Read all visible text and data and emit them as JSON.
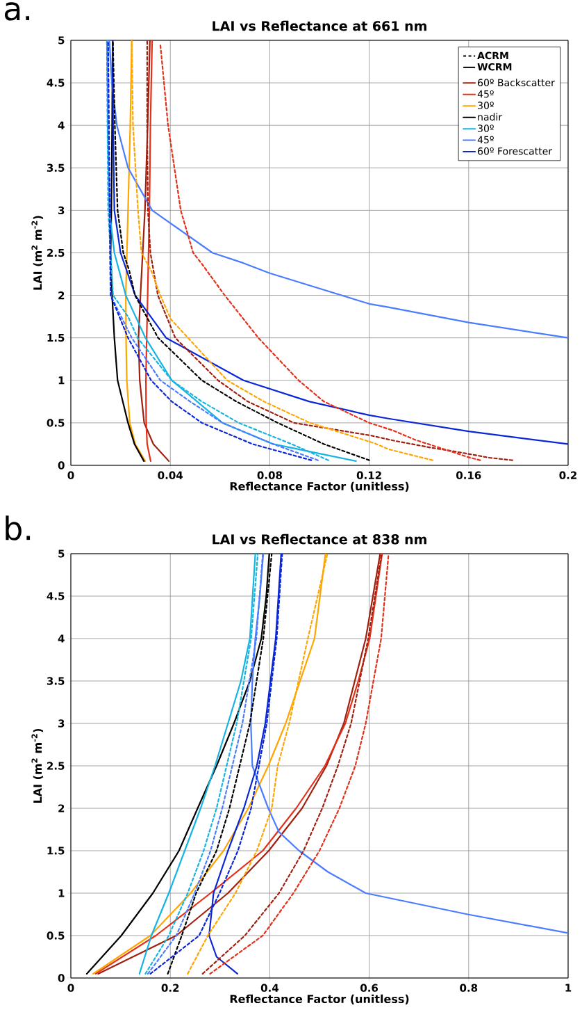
{
  "chart_data": [
    {
      "type": "line",
      "title": "LAI vs Reflectance at 661 nm",
      "xlabel": "Reflectance Factor (unitless)",
      "ylabel": "LAI (m$^{2}$ m$^{-2}$)",
      "annotations": [
        "a.",
        "ACRM",
        "WCRM"
      ],
      "xlim": [
        0,
        0.2
      ],
      "ylim": [
        0,
        5
      ],
      "xticks": [
        0,
        0.04,
        0.08,
        0.12,
        0.16,
        0.2
      ],
      "yticks": [
        0,
        0.5,
        1,
        1.5,
        2,
        2.5,
        3,
        3.5,
        4,
        4.5,
        5
      ],
      "grid": true,
      "legend": "top right",
      "series": [
        {
          "name": "60º Backscatter",
          "color": "#a0200f",
          "line_style": "solid",
          "x": [
            0.0394,
            0.0332,
            0.0295,
            0.0277,
            0.0272,
            0.028,
            0.0298,
            0.0309,
            0.0318
          ],
          "values": [
            0.05,
            0.25,
            0.5,
            1,
            1.5,
            2,
            3,
            4,
            5
          ]
        },
        {
          "name": "45º",
          "color": "#e3301a",
          "line_style": "solid",
          "x": [
            0.0321,
            0.0307,
            0.0303,
            0.0302,
            0.0305,
            0.0309,
            0.0316,
            0.032,
            0.0327
          ],
          "values": [
            0.05,
            0.25,
            0.5,
            1,
            1.5,
            2,
            3,
            4,
            5
          ]
        },
        {
          "name": "30º",
          "color": "#ffa500",
          "line_style": "solid",
          "x": [
            0.0299,
            0.0259,
            0.0237,
            0.0225,
            0.0222,
            0.0221,
            0.023,
            0.0239,
            0.0245
          ],
          "values": [
            0.05,
            0.25,
            0.5,
            1,
            1.5,
            2,
            3,
            4,
            5
          ]
        },
        {
          "name": "nadir",
          "color": "#000000",
          "line_style": "solid",
          "x": [
            0.0294,
            0.0256,
            0.023,
            0.0188,
            0.0175,
            0.0166,
            0.016,
            0.0163,
            0.0166,
            0.0168
          ],
          "values": [
            0.05,
            0.25,
            0.5,
            1,
            1.5,
            2,
            2.5,
            3,
            4,
            5
          ]
        },
        {
          "name": "30º",
          "color": "#16b4e2",
          "line_style": "solid",
          "x": [
            0.1147,
            0.0814,
            0.061,
            0.0406,
            0.03,
            0.0221,
            0.0175,
            0.0155,
            0.0148,
            0.0148
          ],
          "values": [
            0.05,
            0.25,
            0.5,
            1,
            1.5,
            2,
            2.5,
            3,
            4,
            5
          ]
        },
        {
          "name": "45º",
          "color": "#4a7cff",
          "line_style": "solid",
          "x": [
            0.2,
            0.16,
            0.1277,
            0.12,
            0.08,
            0.0694,
            0.057,
            0.0327,
            0.023,
            0.0185,
            0.0165,
            0.0155
          ],
          "values": [
            1.5,
            1.68,
            1.86,
            1.9,
            2.26,
            2.38,
            2.5,
            3,
            3.5,
            4,
            4.5,
            5
          ]
        },
        {
          "name": "60º Forescatter",
          "color": "#0b26d6",
          "line_style": "solid",
          "x": [
            0.2,
            0.16,
            0.1277,
            0.12,
            0.096,
            0.0694,
            0.0383,
            0.0259,
            0.02,
            0.0175,
            0.017,
            0.0168
          ],
          "values": [
            0.25,
            0.4,
            0.55,
            0.59,
            0.75,
            1,
            1.5,
            2,
            2.5,
            3,
            4,
            5
          ]
        },
        {
          "color": "#a0200f",
          "line_style": "dashed",
          "x": [
            0.1776,
            0.1683,
            0.1608,
            0.153,
            0.1445,
            0.13,
            0.1208,
            0.0897,
            0.0712,
            0.0592,
            0.042,
            0.035,
            0.032,
            0.031,
            0.0307,
            0.0307
          ],
          "values": [
            0.06,
            0.09,
            0.13,
            0.17,
            0.21,
            0.29,
            0.35,
            0.5,
            0.75,
            1,
            1.5,
            2,
            2.5,
            3,
            4,
            5
          ]
        },
        {
          "color": "#e3301a",
          "line_style": "dashed",
          "x": [
            0.1646,
            0.1594,
            0.148,
            0.1385,
            0.1296,
            0.12,
            0.1018,
            0.0916,
            0.0754,
            0.0619,
            0.0527,
            0.0492,
            0.0442,
            0.0391,
            0.036
          ],
          "values": [
            0.06,
            0.1,
            0.21,
            0.3,
            0.41,
            0.5,
            0.75,
            1,
            1.5,
            2,
            2.37,
            2.5,
            3,
            4,
            4.95
          ]
        },
        {
          "color": "#ffa500",
          "line_style": "dashed",
          "x": [
            0.1455,
            0.1277,
            0.1221,
            0.0962,
            0.0777,
            0.0629,
            0.0471,
            0.0402,
            0.036,
            0.0323,
            0.0284,
            0.027,
            0.025,
            0.0245
          ],
          "values": [
            0.06,
            0.19,
            0.26,
            0.5,
            0.75,
            1,
            1.5,
            1.72,
            2,
            2.29,
            2.5,
            3,
            4,
            5
          ]
        },
        {
          "color": "#000000",
          "line_style": "dashed",
          "x": [
            0.12,
            0.1018,
            0.0832,
            0.0666,
            0.0527,
            0.0351,
            0.0258,
            0.0235,
            0.0211,
            0.0188,
            0.0177,
            0.0169
          ],
          "values": [
            0.06,
            0.25,
            0.5,
            0.75,
            1,
            1.5,
            2,
            2.29,
            2.5,
            3,
            4,
            5
          ]
        },
        {
          "color": "#16b4e2",
          "line_style": "dashed",
          "x": [
            0.1036,
            0.0888,
            0.0675,
            0.0527,
            0.0406,
            0.0268,
            0.023,
            0.017,
            0.015,
            0.0145
          ],
          "values": [
            0.06,
            0.25,
            0.5,
            0.75,
            1,
            1.5,
            1.75,
            2,
            3,
            5
          ]
        },
        {
          "color": "#4a7cff",
          "line_style": "dashed",
          "x": [
            0.0994,
            0.0814,
            0.061,
            0.048,
            0.036,
            0.0245,
            0.016,
            0.0145
          ],
          "values": [
            0.06,
            0.25,
            0.5,
            0.75,
            1,
            1.5,
            2,
            5
          ]
        },
        {
          "color": "#0b26d6",
          "line_style": "dashed",
          "x": [
            0.0967,
            0.0731,
            0.0527,
            0.0406,
            0.0323,
            0.023,
            0.016,
            0.015
          ],
          "values": [
            0.06,
            0.25,
            0.5,
            0.75,
            1,
            1.5,
            2,
            5
          ]
        }
      ]
    },
    {
      "type": "line",
      "title": "LAI vs Reflectance at 838 nm",
      "xlabel": "Reflectance Factor (unitless)",
      "ylabel": "LAI (m$^{2}$ m$^{-2}$)",
      "annotations": [
        "b."
      ],
      "xlim": [
        0,
        1
      ],
      "ylim": [
        0,
        5
      ],
      "xticks": [
        0,
        0.2,
        0.4,
        0.6,
        0.8,
        1
      ],
      "yticks": [
        0,
        0.5,
        1,
        1.5,
        2,
        2.5,
        3,
        3.5,
        4,
        4.5,
        5
      ],
      "grid": true,
      "series": [
        {
          "color": "#a0200f",
          "line_style": "solid",
          "x": [
            0.055,
            0.212,
            0.316,
            0.398,
            0.465,
            0.514,
            0.549,
            0.593,
            0.622
          ],
          "values": [
            0.05,
            0.5,
            1,
            1.5,
            2,
            2.5,
            3,
            4,
            5
          ]
        },
        {
          "color": "#e3301a",
          "line_style": "solid",
          "x": [
            0.05,
            0.171,
            0.281,
            0.386,
            0.453,
            0.511,
            0.552,
            0.578,
            0.601,
            0.626
          ],
          "values": [
            0.05,
            0.5,
            1,
            1.5,
            2,
            2.5,
            3,
            3.5,
            4,
            5
          ]
        },
        {
          "color": "#ffa500",
          "line_style": "solid",
          "x": [
            0.045,
            0.16,
            0.241,
            0.307,
            0.357,
            0.397,
            0.432,
            0.49,
            0.512
          ],
          "values": [
            0.05,
            0.5,
            1,
            1.5,
            2,
            2.5,
            3,
            4,
            5
          ]
        },
        {
          "color": "#000000",
          "line_style": "solid",
          "x": [
            0.032,
            0.1015,
            0.165,
            0.2175,
            0.255,
            0.293,
            0.328,
            0.36,
            0.383,
            0.393,
            0.399
          ],
          "values": [
            0.05,
            0.5,
            1,
            1.5,
            2,
            2.5,
            3,
            3.5,
            4,
            4.5,
            5
          ]
        },
        {
          "color": "#16b4e2",
          "line_style": "solid",
          "x": [
            0.138,
            0.162,
            0.197,
            0.229,
            0.261,
            0.29,
            0.316,
            0.342,
            0.36,
            0.371
          ],
          "values": [
            0.05,
            0.5,
            1,
            1.5,
            2,
            2.5,
            3,
            3.5,
            4,
            5
          ]
        },
        {
          "color": "#4a7cff",
          "line_style": "solid",
          "x": [
            1,
            0.798,
            0.593,
            0.517,
            0.459,
            0.4186,
            0.397,
            0.365,
            0.362,
            0.365,
            0.371,
            0.38,
            0.387
          ],
          "values": [
            0.53,
            0.75,
            1,
            1.25,
            1.5,
            1.72,
            2,
            2.5,
            3,
            3.5,
            4,
            4.5,
            5
          ]
        },
        {
          "color": "#0b26d6",
          "line_style": "solid",
          "x": [
            0.335,
            0.293,
            0.278,
            0.287,
            0.316,
            0.348,
            0.374,
            0.391,
            0.412,
            0.423
          ],
          "values": [
            0.05,
            0.25,
            0.5,
            1,
            1.5,
            2,
            2.5,
            3,
            4,
            5
          ]
        },
        {
          "color": "#a0200f",
          "line_style": "dashed",
          "x": [
            0.265,
            0.35,
            0.4186,
            0.468,
            0.5056,
            0.537,
            0.5636,
            0.598,
            0.625
          ],
          "values": [
            0.05,
            0.5,
            1,
            1.5,
            2,
            2.5,
            3,
            4,
            5
          ]
        },
        {
          "color": "#e3301a",
          "line_style": "dashed",
          "x": [
            0.28,
            0.386,
            0.4476,
            0.5,
            0.54,
            0.572,
            0.593,
            0.624,
            0.639
          ],
          "values": [
            0.05,
            0.5,
            1,
            1.5,
            2,
            2.5,
            3,
            4,
            5
          ]
        },
        {
          "color": "#ffa500",
          "line_style": "dashed",
          "x": [
            0.235,
            0.2755,
            0.331,
            0.374,
            0.404,
            0.416,
            0.439,
            0.4766,
            0.516
          ],
          "values": [
            0.05,
            0.5,
            1,
            1.5,
            2,
            2.5,
            3,
            4,
            5
          ]
        },
        {
          "color": "#000000",
          "line_style": "dashed",
          "x": [
            0.195,
            0.223,
            0.252,
            0.293,
            0.319,
            0.36,
            0.387,
            0.404
          ],
          "values": [
            0.05,
            0.5,
            1,
            1.5,
            2,
            3,
            4,
            5
          ]
        },
        {
          "color": "#16b4e2",
          "line_style": "dashed",
          "x": [
            0.15,
            0.197,
            0.235,
            0.267,
            0.293,
            0.3335,
            0.3625,
            0.376
          ],
          "values": [
            0.05,
            0.5,
            1,
            1.5,
            2,
            3,
            4,
            5
          ]
        },
        {
          "color": "#4a7cff",
          "line_style": "dashed",
          "x": [
            0.155,
            0.212,
            0.249,
            0.281,
            0.3045,
            0.345,
            0.373,
            0.386
          ],
          "values": [
            0.05,
            0.5,
            1,
            1.5,
            2,
            3,
            4,
            5
          ]
        },
        {
          "color": "#0b26d6",
          "line_style": "dashed",
          "x": [
            0.16,
            0.258,
            0.299,
            0.336,
            0.3625,
            0.394,
            0.414,
            0.425
          ],
          "values": [
            0.05,
            0.5,
            1,
            1.5,
            2,
            3,
            4,
            5
          ]
        }
      ]
    }
  ]
}
